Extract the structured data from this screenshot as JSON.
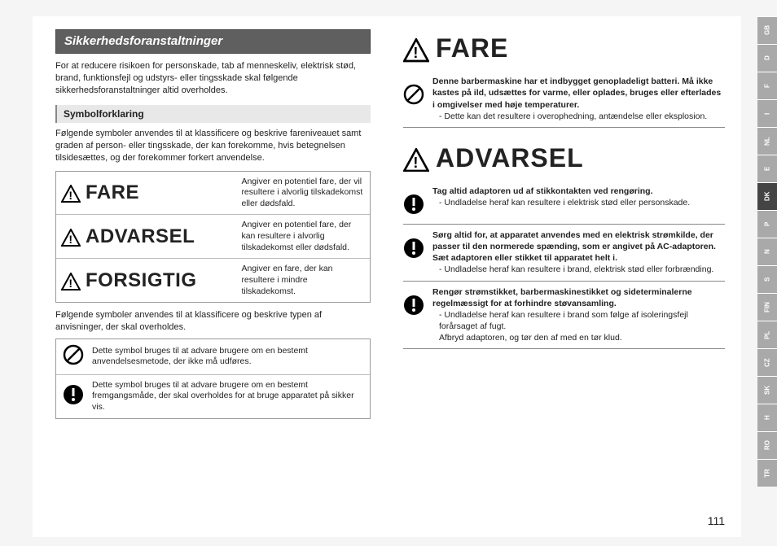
{
  "left": {
    "section_title": "Sikkerhedsforanstaltninger",
    "intro": "For at reducere risikoen for personskade, tab af menneskeliv, elektrisk stød, brand, funktionsfejl og udstyrs- eller tingsskade skal følgende sikkerhedsforanstaltninger altid overholdes.",
    "sub_title": "Symbolforklaring",
    "sub_intro": "Følgende symboler anvendes til at klassificere og beskrive fareniveauet samt graden af person- eller tingsskade, der kan forekomme, hvis betegnelsen tilsidesættes, og der forekommer forkert anvendelse.",
    "defs": [
      {
        "label": "FARE",
        "desc": "Angiver en potentiel fare, der vil resultere i alvorlig tilskadekomst eller dødsfald."
      },
      {
        "label": "ADVARSEL",
        "desc": "Angiver en potentiel fare, der kan resultere i alvorlig tilskadekomst eller dødsfald."
      },
      {
        "label": "FORSIGTIG",
        "desc": "Angiver en fare, der kan resultere i mindre tilskadekomst."
      }
    ],
    "post_defs": "Følgende symboler anvendes til at klassificere og beskrive typen af anvisninger, der skal overholdes.",
    "symbols": [
      {
        "icon": "prohibit",
        "text": "Dette symbol bruges til at advare brugere om en bestemt anvendelsesmetode, der ikke må udføres."
      },
      {
        "icon": "mandatory",
        "text": "Dette symbol bruges til at advare brugere om en bestemt fremgangsmåde, der skal overholdes for at bruge apparatet på sikker vis."
      }
    ]
  },
  "right": {
    "fare_title": "FARE",
    "fare_block": {
      "bold": "Denne barbermaskine har et indbygget genopladeligt batteri. Må ikke kastes på ild, udsættes for varme, eller oplades, bruges eller efterlades i omgivelser med høje temperaturer.",
      "dash": "- Dette kan det resultere i overophedning, antændelse eller eksplosion."
    },
    "advarsel_title": "ADVARSEL",
    "advarsel_blocks": [
      {
        "bold": "Tag altid adaptoren ud af stikkontakten ved rengøring.",
        "dash": "- Undladelse heraf kan resultere i elektrisk stød eller personskade."
      },
      {
        "bold": "Sørg altid for, at apparatet anvendes med en elektrisk strømkilde, der passer til den normerede spænding, som er angivet på AC-adaptoren.\nSæt adaptoren eller stikket til apparatet helt i.",
        "dash": "- Undladelse heraf kan resultere i brand, elektrisk stød eller forbrænding."
      },
      {
        "bold": "Rengør strømstikket, barbermaskinestikket og sideterminalerne regelmæssigt for at forhindre støvansamling.",
        "dash": "- Undladelse heraf kan resultere i brand som følge af isoleringsfejl forårsaget af fugt.\nAfbryd adaptoren, og tør den af med en tør klud."
      }
    ]
  },
  "lang_tabs": [
    "GB",
    "D",
    "F",
    "I",
    "NL",
    "E",
    "DK",
    "P",
    "N",
    "S",
    "FIN",
    "PL",
    "CZ",
    "SK",
    "H",
    "RO",
    "TR"
  ],
  "active_lang": "DK",
  "page_number": "111"
}
